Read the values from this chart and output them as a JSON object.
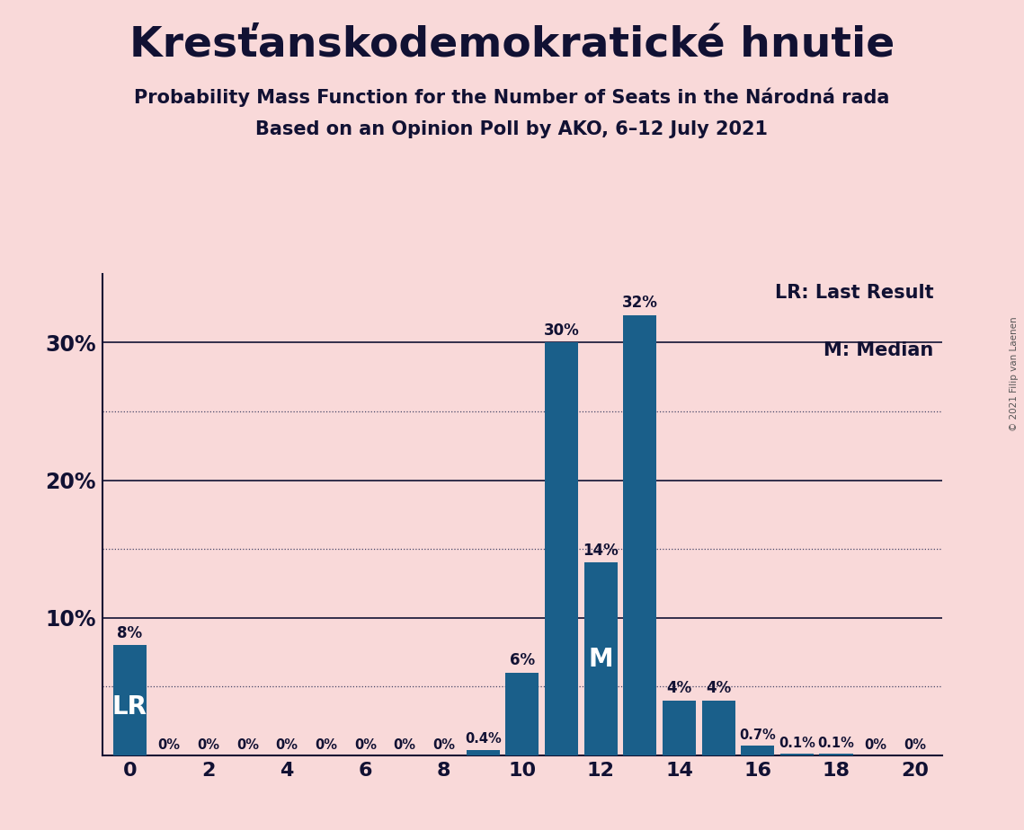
{
  "title": "Kresťanskodemokratické hnutie",
  "subtitle1": "Probability Mass Function for the Number of Seats in the Národná rada",
  "subtitle2": "Based on an Opinion Poll by AKO, 6–12 July 2021",
  "copyright": "© 2021 Filip van Laenen",
  "x_values": [
    0,
    1,
    2,
    3,
    4,
    5,
    6,
    7,
    8,
    9,
    10,
    11,
    12,
    13,
    14,
    15,
    16,
    17,
    18,
    19,
    20
  ],
  "y_values": [
    8,
    0,
    0,
    0,
    0,
    0,
    0,
    0,
    0,
    0.4,
    6,
    30,
    14,
    32,
    4,
    4,
    0.7,
    0.1,
    0.1,
    0,
    0
  ],
  "bar_color": "#1a5f8a",
  "background_color": "#f9d9d9",
  "lr_seat": 0,
  "median_seat": 12,
  "y_max": 35,
  "text_color": "#111133",
  "legend_lr": "LR: Last Result",
  "legend_m": "M: Median"
}
